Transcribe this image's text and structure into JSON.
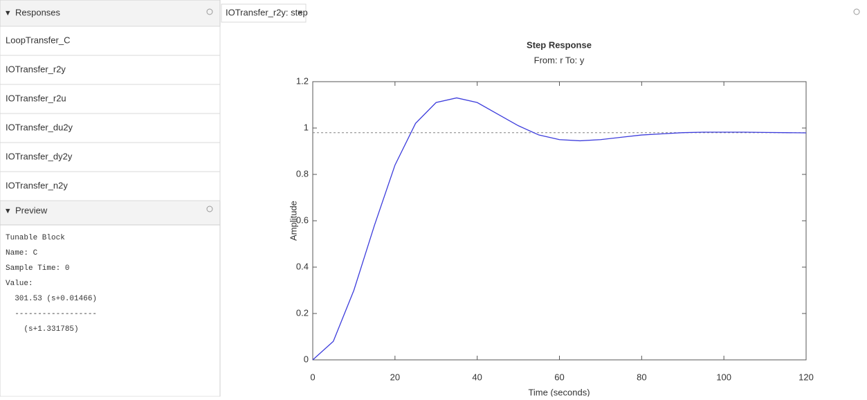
{
  "responses": {
    "title": "Responses",
    "items": [
      "LoopTransfer_C",
      "IOTransfer_r2y",
      "IOTransfer_r2u",
      "IOTransfer_du2y",
      "IOTransfer_dy2y",
      "IOTransfer_n2y"
    ]
  },
  "preview": {
    "title": "Preview",
    "lines": [
      "Tunable Block",
      "Name: C",
      "Sample Time: 0",
      "Value:",
      "  301.53 (s+0.01466)",
      "  ------------------",
      "    (s+1.331785)"
    ]
  },
  "tab": {
    "title": "IOTransfer_r2y: step",
    "close": "×"
  },
  "chart_data": {
    "type": "line",
    "title": "Step Response",
    "subtitle": "From: r  To: y",
    "x_label": "Time (seconds)",
    "y_label": "Amplitude",
    "x": [
      0,
      5,
      10,
      15,
      20,
      25,
      30,
      35,
      40,
      45,
      50,
      55,
      60,
      65,
      70,
      75,
      80,
      85,
      90,
      95,
      100,
      105,
      110,
      115,
      120
    ],
    "series": [
      {
        "name": "IOTransfer_r2y",
        "color": "#3c3cdc",
        "values": [
          0,
          0.08,
          0.3,
          0.58,
          0.84,
          1.02,
          1.11,
          1.13,
          1.11,
          1.06,
          1.01,
          0.97,
          0.95,
          0.945,
          0.95,
          0.96,
          0.97,
          0.975,
          0.98,
          0.982,
          0.982,
          0.982,
          0.981,
          0.98,
          0.979
        ]
      }
    ],
    "reference": {
      "value": 0.98,
      "color": "#808080"
    },
    "xlim": [
      0,
      120
    ],
    "ylim": [
      0,
      1.2
    ],
    "xticks": [
      0,
      20,
      40,
      60,
      80,
      100,
      120
    ],
    "yticks": [
      0,
      0.2,
      0.4,
      0.6,
      0.8,
      1,
      1.2
    ]
  }
}
